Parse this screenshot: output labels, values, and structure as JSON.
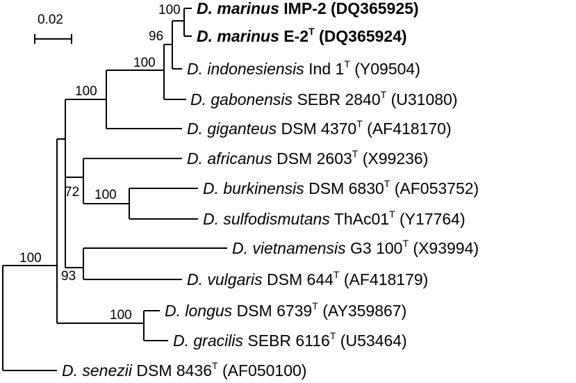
{
  "scale_bar": {
    "label": "0.02"
  },
  "taxa": [
    {
      "genus": "D. marinus",
      "strain": "IMP-2",
      "type_mark": "",
      "accession": "(DQ365925)",
      "bold": true
    },
    {
      "genus": "D. marinus",
      "strain": "E-2",
      "type_mark": "T",
      "accession": "(DQ365924)",
      "bold": true
    },
    {
      "genus": "D. indonesiensis",
      "strain": "Ind 1",
      "type_mark": "T",
      "accession": "(Y09504)",
      "bold": false
    },
    {
      "genus": "D. gabonensis",
      "strain": "SEBR 2840",
      "type_mark": "T",
      "accession": "(U31080)",
      "bold": false
    },
    {
      "genus": "D. giganteus",
      "strain": "DSM 4370",
      "type_mark": "T",
      "accession": "(AF418170)",
      "bold": false
    },
    {
      "genus": "D. africanus",
      "strain": "DSM 2603",
      "type_mark": "T",
      "accession": "(X99236)",
      "bold": false
    },
    {
      "genus": "D. burkinensis",
      "strain": "DSM 6830",
      "type_mark": "T",
      "accession": "(AF053752)",
      "bold": false
    },
    {
      "genus": "D. sulfodismutans",
      "strain": "ThAc01",
      "type_mark": "T",
      "accession": "(Y17764)",
      "bold": false
    },
    {
      "genus": "D. vietnamensis",
      "strain": "G3 100",
      "type_mark": "T",
      "accession": "(X93994)",
      "bold": false
    },
    {
      "genus": "D. vulgaris",
      "strain": "DSM 644",
      "type_mark": "T",
      "accession": "(AF418179)",
      "bold": false
    },
    {
      "genus": "D. longus",
      "strain": "DSM 6739",
      "type_mark": "T",
      "accession": "(AY359867)",
      "bold": false
    },
    {
      "genus": "D. gracilis",
      "strain": "SEBR 6116",
      "type_mark": "T",
      "accession": "(U53464)",
      "bold": false
    },
    {
      "genus": "D. senezii",
      "strain": "DSM 8436",
      "type_mark": "T",
      "accession": "(AF050100)",
      "bold": false
    }
  ],
  "bootstrap": {
    "marinus_pair": "100",
    "marinus_plus_indonesiensis": "96",
    "marinus_indonesiensis_gabonensis": "100",
    "with_giganteus": "100",
    "burkinensis_sulfodismutans": "100",
    "africanus_clade": "72",
    "vietnamensis_vulgaris": "93",
    "longus_gracilis": "100",
    "ingroup": "100"
  }
}
